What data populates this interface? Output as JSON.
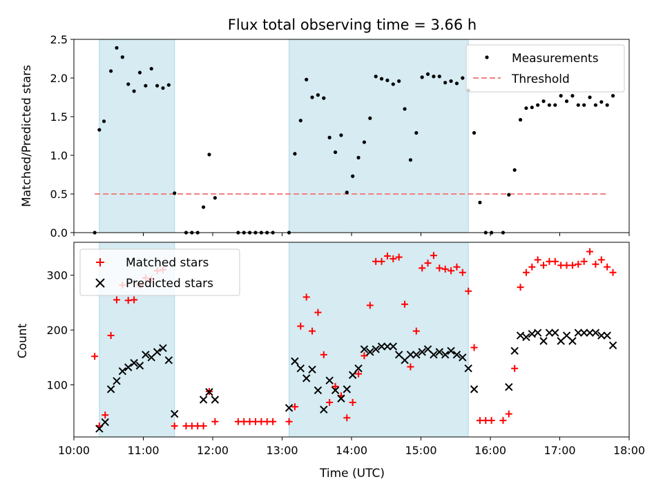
{
  "colors": {
    "measurements": "#000000",
    "threshold": "#f08080",
    "matched": "#ff0000",
    "predicted": "#000000",
    "shade": "#add8e6"
  },
  "chart_data": [
    {
      "type": "scatter",
      "title": "Flux total observing time = 3.66 h",
      "xlabel": "",
      "ylabel": "Matched/Predicted stars",
      "xlim": [
        "10:00",
        "18:00"
      ],
      "ylim": [
        0,
        2.5
      ],
      "yticks": [
        "0.0",
        "0.5",
        "1.0",
        "1.5",
        "2.0",
        "2.5"
      ],
      "shaded_intervals": [
        [
          "10:22",
          "11:27"
        ],
        [
          "13:06",
          "15:41"
        ]
      ],
      "threshold": {
        "name": "Threshold",
        "y": 0.5,
        "x_range": [
          "10:18",
          "17:42"
        ],
        "style": "dashed"
      },
      "legend": {
        "position": "top-right",
        "entries": [
          "Measurements",
          "Threshold"
        ]
      },
      "series": [
        {
          "name": "Measurements",
          "marker": "dot",
          "points": [
            [
              "10:18",
              0
            ],
            [
              "10:22",
              1.33
            ],
            [
              "10:26",
              1.44
            ],
            [
              "10:32",
              2.09
            ],
            [
              "10:37",
              2.39
            ],
            [
              "10:42",
              2.27
            ],
            [
              "10:47",
              1.92
            ],
            [
              "10:52",
              1.83
            ],
            [
              "10:57",
              2.07
            ],
            [
              "11:02",
              1.9
            ],
            [
              "11:07",
              2.12
            ],
            [
              "11:12",
              1.9
            ],
            [
              "11:17",
              1.87
            ],
            [
              "11:22",
              1.91
            ],
            [
              "11:27",
              0.51
            ],
            [
              "11:37",
              0
            ],
            [
              "11:42",
              0
            ],
            [
              "11:47",
              0
            ],
            [
              "11:52",
              0.33
            ],
            [
              "11:57",
              1.01
            ],
            [
              "12:02",
              0.45
            ],
            [
              "12:22",
              0
            ],
            [
              "12:27",
              0
            ],
            [
              "12:32",
              0
            ],
            [
              "12:37",
              0
            ],
            [
              "12:42",
              0
            ],
            [
              "12:47",
              0
            ],
            [
              "12:52",
              0
            ],
            [
              "13:06",
              0
            ],
            [
              "13:11",
              1.02
            ],
            [
              "13:16",
              1.45
            ],
            [
              "13:21",
              1.98
            ],
            [
              "13:26",
              1.75
            ],
            [
              "13:31",
              1.78
            ],
            [
              "13:36",
              1.74
            ],
            [
              "13:41",
              1.23
            ],
            [
              "13:46",
              1.04
            ],
            [
              "13:51",
              1.26
            ],
            [
              "13:56",
              0.52
            ],
            [
              "14:01",
              0.73
            ],
            [
              "14:06",
              0.97
            ],
            [
              "14:11",
              1.17
            ],
            [
              "14:16",
              1.48
            ],
            [
              "14:21",
              2.02
            ],
            [
              "14:26",
              1.99
            ],
            [
              "14:31",
              1.97
            ],
            [
              "14:36",
              1.92
            ],
            [
              "14:41",
              1.96
            ],
            [
              "14:46",
              1.6
            ],
            [
              "14:51",
              0.94
            ],
            [
              "14:56",
              1.29
            ],
            [
              "15:01",
              2.01
            ],
            [
              "15:06",
              2.05
            ],
            [
              "15:11",
              2.02
            ],
            [
              "15:16",
              2.02
            ],
            [
              "15:21",
              1.94
            ],
            [
              "15:26",
              1.96
            ],
            [
              "15:31",
              1.93
            ],
            [
              "15:36",
              2.0
            ],
            [
              "15:41",
              1.84
            ],
            [
              "15:46",
              1.29
            ],
            [
              "15:51",
              0.39
            ],
            [
              "15:56",
              0
            ],
            [
              "16:01",
              0
            ],
            [
              "16:11",
              0
            ],
            [
              "16:16",
              0.49
            ],
            [
              "16:21",
              0.81
            ],
            [
              "16:26",
              1.46
            ],
            [
              "16:31",
              1.61
            ],
            [
              "16:36",
              1.62
            ],
            [
              "16:41",
              1.65
            ],
            [
              "16:46",
              1.7
            ],
            [
              "16:51",
              1.65
            ],
            [
              "16:56",
              1.65
            ],
            [
              "17:01",
              1.77
            ],
            [
              "17:06",
              1.7
            ],
            [
              "17:11",
              1.77
            ],
            [
              "17:16",
              1.65
            ],
            [
              "17:21",
              1.65
            ],
            [
              "17:26",
              1.75
            ],
            [
              "17:31",
              1.65
            ],
            [
              "17:36",
              1.69
            ],
            [
              "17:41",
              1.65
            ],
            [
              "17:46",
              1.77
            ]
          ]
        }
      ]
    },
    {
      "type": "scatter",
      "title": "",
      "xlabel": "Time (UTC)",
      "ylabel": "Count",
      "xlim": [
        "10:00",
        "18:00"
      ],
      "xticks": [
        "10:00",
        "11:00",
        "12:00",
        "13:00",
        "14:00",
        "15:00",
        "16:00",
        "17:00",
        "18:00"
      ],
      "ylim": [
        5,
        360
      ],
      "yticks": [
        "100",
        "200",
        "300"
      ],
      "shaded_intervals": [
        [
          "10:22",
          "11:27"
        ],
        [
          "13:06",
          "15:41"
        ]
      ],
      "legend": {
        "position": "top-left",
        "entries": [
          "Matched stars",
          "Predicted stars"
        ]
      },
      "series": [
        {
          "name": "Matched stars",
          "marker": "plus",
          "points": [
            [
              "10:18",
              152
            ],
            [
              "10:22",
              25
            ],
            [
              "10:27",
              45
            ],
            [
              "10:32",
              190
            ],
            [
              "10:37",
              255
            ],
            [
              "10:42",
              282
            ],
            [
              "10:47",
              254
            ],
            [
              "10:52",
              255
            ],
            [
              "10:57",
              282
            ],
            [
              "11:02",
              295
            ],
            [
              "11:07",
              292
            ],
            [
              "11:12",
              308
            ],
            [
              "11:17",
              310
            ],
            [
              "11:27",
              25
            ],
            [
              "11:37",
              25
            ],
            [
              "11:42",
              25
            ],
            [
              "11:47",
              25
            ],
            [
              "11:52",
              25
            ],
            [
              "11:57",
              88
            ],
            [
              "12:02",
              33
            ],
            [
              "12:22",
              33
            ],
            [
              "12:27",
              33
            ],
            [
              "12:32",
              33
            ],
            [
              "12:37",
              33
            ],
            [
              "12:42",
              33
            ],
            [
              "12:47",
              33
            ],
            [
              "12:52",
              33
            ],
            [
              "13:06",
              33
            ],
            [
              "13:11",
              60
            ],
            [
              "13:16",
              207
            ],
            [
              "13:21",
              260
            ],
            [
              "13:26",
              198
            ],
            [
              "13:31",
              232
            ],
            [
              "13:36",
              155
            ],
            [
              "13:41",
              68
            ],
            [
              "13:46",
              97
            ],
            [
              "13:51",
              80
            ],
            [
              "13:56",
              40
            ],
            [
              "14:01",
              68
            ],
            [
              "14:06",
              120
            ],
            [
              "14:11",
              153
            ],
            [
              "14:16",
              245
            ],
            [
              "14:21",
              325
            ],
            [
              "14:26",
              325
            ],
            [
              "14:31",
              335
            ],
            [
              "14:36",
              330
            ],
            [
              "14:41",
              333
            ],
            [
              "14:46",
              247
            ],
            [
              "14:51",
              133
            ],
            [
              "14:56",
              198
            ],
            [
              "15:01",
              313
            ],
            [
              "15:06",
              322
            ],
            [
              "15:11",
              336
            ],
            [
              "15:16",
              313
            ],
            [
              "15:21",
              311
            ],
            [
              "15:26",
              308
            ],
            [
              "15:31",
              315
            ],
            [
              "15:36",
              305
            ],
            [
              "15:41",
              271
            ],
            [
              "15:46",
              168
            ],
            [
              "15:51",
              35
            ],
            [
              "15:56",
              35
            ],
            [
              "16:01",
              35
            ],
            [
              "16:11",
              35
            ],
            [
              "16:16",
              47
            ],
            [
              "16:21",
              130
            ],
            [
              "16:26",
              278
            ],
            [
              "16:31",
              305
            ],
            [
              "16:36",
              315
            ],
            [
              "16:41",
              328
            ],
            [
              "16:46",
              318
            ],
            [
              "16:51",
              325
            ],
            [
              "16:56",
              325
            ],
            [
              "17:01",
              318
            ],
            [
              "17:06",
              318
            ],
            [
              "17:11",
              318
            ],
            [
              "17:16",
              320
            ],
            [
              "17:21",
              325
            ],
            [
              "17:26",
              343
            ],
            [
              "17:31",
              320
            ],
            [
              "17:36",
              328
            ],
            [
              "17:41",
              315
            ],
            [
              "17:46",
              305
            ]
          ]
        },
        {
          "name": "Predicted stars",
          "marker": "x",
          "points": [
            [
              "10:22",
              20
            ],
            [
              "10:27",
              32
            ],
            [
              "10:32",
              92
            ],
            [
              "10:37",
              107
            ],
            [
              "10:42",
              125
            ],
            [
              "10:47",
              132
            ],
            [
              "10:52",
              140
            ],
            [
              "10:57",
              135
            ],
            [
              "11:02",
              155
            ],
            [
              "11:07",
              150
            ],
            [
              "11:12",
              160
            ],
            [
              "11:17",
              167
            ],
            [
              "11:22",
              145
            ],
            [
              "11:27",
              47
            ],
            [
              "11:52",
              73
            ],
            [
              "11:57",
              87
            ],
            [
              "12:02",
              73
            ],
            [
              "13:06",
              58
            ],
            [
              "13:11",
              143
            ],
            [
              "13:16",
              130
            ],
            [
              "13:21",
              112
            ],
            [
              "13:26",
              128
            ],
            [
              "13:31",
              90
            ],
            [
              "13:36",
              55
            ],
            [
              "13:41",
              108
            ],
            [
              "13:46",
              90
            ],
            [
              "13:51",
              75
            ],
            [
              "13:56",
              92
            ],
            [
              "14:01",
              118
            ],
            [
              "14:06",
              130
            ],
            [
              "14:11",
              165
            ],
            [
              "14:16",
              160
            ],
            [
              "14:21",
              165
            ],
            [
              "14:26",
              170
            ],
            [
              "14:31",
              170
            ],
            [
              "14:36",
              170
            ],
            [
              "14:41",
              155
            ],
            [
              "14:46",
              145
            ],
            [
              "14:51",
              155
            ],
            [
              "14:56",
              155
            ],
            [
              "15:01",
              160
            ],
            [
              "15:06",
              165
            ],
            [
              "15:11",
              155
            ],
            [
              "15:16",
              160
            ],
            [
              "15:21",
              155
            ],
            [
              "15:26",
              162
            ],
            [
              "15:31",
              155
            ],
            [
              "15:36",
              150
            ],
            [
              "15:41",
              130
            ],
            [
              "15:46",
              92
            ],
            [
              "16:16",
              96
            ],
            [
              "16:21",
              162
            ],
            [
              "16:26",
              190
            ],
            [
              "16:31",
              187
            ],
            [
              "16:36",
              193
            ],
            [
              "16:41",
              195
            ],
            [
              "16:46",
              180
            ],
            [
              "16:51",
              195
            ],
            [
              "16:56",
              195
            ],
            [
              "17:01",
              180
            ],
            [
              "17:06",
              190
            ],
            [
              "17:11",
              180
            ],
            [
              "17:16",
              195
            ],
            [
              "17:21",
              195
            ],
            [
              "17:26",
              195
            ],
            [
              "17:31",
              195
            ],
            [
              "17:36",
              190
            ],
            [
              "17:41",
              190
            ],
            [
              "17:46",
              172
            ]
          ]
        }
      ]
    }
  ]
}
